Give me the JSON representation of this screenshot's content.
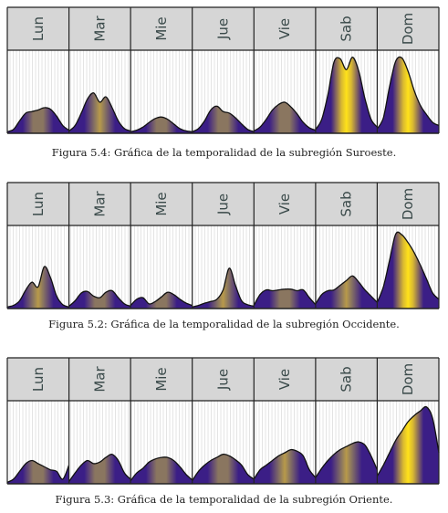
{
  "colors": {
    "header_fill": "#d6d6d6",
    "grid": "#c8c8c8",
    "frame": "#222222",
    "low": "#3b1e86",
    "mid": "#8a7660",
    "high": "#ffe21a"
  },
  "figures": [
    {
      "caption": "Figura 5.4: Gráfica de la temporalidad de la subregión Suroeste."
    },
    {
      "caption": "Figura 5.2: Gráfica de la temporalidad de la subregión Occidente."
    },
    {
      "caption": "Figura 5.3: Gráfica de la temporalidad de la subregión Oriente."
    }
  ],
  "chart_data": [
    {
      "type": "area",
      "title": "",
      "categories": [
        "Lun",
        "Mar",
        "Mie",
        "Jue",
        "Vie",
        "Sab",
        "Dom"
      ],
      "ylim": [
        0,
        1
      ],
      "grid": true,
      "values": [
        [
          0.02,
          0.05,
          0.16,
          0.26,
          0.28,
          0.3,
          0.33,
          0.31,
          0.22,
          0.1,
          0.04
        ],
        [
          0.03,
          0.1,
          0.26,
          0.44,
          0.52,
          0.4,
          0.47,
          0.33,
          0.16,
          0.06,
          0.03
        ],
        [
          0.02,
          0.04,
          0.08,
          0.14,
          0.19,
          0.21,
          0.18,
          0.12,
          0.06,
          0.03,
          0.02
        ],
        [
          0.02,
          0.06,
          0.16,
          0.3,
          0.35,
          0.28,
          0.26,
          0.2,
          0.12,
          0.05,
          0.02
        ],
        [
          0.03,
          0.08,
          0.18,
          0.3,
          0.37,
          0.4,
          0.34,
          0.25,
          0.14,
          0.07,
          0.04
        ],
        [
          0.05,
          0.18,
          0.5,
          0.92,
          0.96,
          0.82,
          0.98,
          0.8,
          0.45,
          0.18,
          0.08
        ],
        [
          0.06,
          0.2,
          0.6,
          0.93,
          0.97,
          0.8,
          0.55,
          0.36,
          0.24,
          0.14,
          0.1
        ]
      ]
    },
    {
      "type": "area",
      "title": "",
      "categories": [
        "Lun",
        "Mar",
        "Mie",
        "Jue",
        "Vie",
        "Sab",
        "Dom"
      ],
      "ylim": [
        0,
        1
      ],
      "grid": true,
      "values": [
        [
          0.02,
          0.04,
          0.1,
          0.24,
          0.34,
          0.28,
          0.54,
          0.4,
          0.16,
          0.05,
          0.02
        ],
        [
          0.03,
          0.1,
          0.2,
          0.22,
          0.16,
          0.14,
          0.21,
          0.23,
          0.14,
          0.06,
          0.03
        ],
        [
          0.04,
          0.12,
          0.14,
          0.06,
          0.09,
          0.15,
          0.21,
          0.18,
          0.12,
          0.07,
          0.04
        ],
        [
          0.02,
          0.04,
          0.07,
          0.09,
          0.12,
          0.24,
          0.52,
          0.3,
          0.1,
          0.05,
          0.03
        ],
        [
          0.04,
          0.18,
          0.24,
          0.23,
          0.24,
          0.25,
          0.25,
          0.23,
          0.24,
          0.14,
          0.05
        ],
        [
          0.06,
          0.18,
          0.23,
          0.24,
          0.3,
          0.36,
          0.42,
          0.34,
          0.24,
          0.16,
          0.08
        ],
        [
          0.08,
          0.28,
          0.62,
          0.96,
          0.95,
          0.85,
          0.72,
          0.56,
          0.38,
          0.2,
          0.12
        ]
      ]
    },
    {
      "type": "area",
      "title": "",
      "categories": [
        "Lun",
        "Mar",
        "Mie",
        "Jue",
        "Vie",
        "Sab",
        "Dom"
      ],
      "ylim": [
        0,
        1
      ],
      "grid": true,
      "values": [
        [
          0.02,
          0.06,
          0.16,
          0.26,
          0.3,
          0.26,
          0.22,
          0.18,
          0.16,
          0.06,
          0.24
        ],
        [
          0.03,
          0.14,
          0.24,
          0.3,
          0.26,
          0.28,
          0.34,
          0.38,
          0.3,
          0.14,
          0.06
        ],
        [
          0.04,
          0.14,
          0.2,
          0.28,
          0.32,
          0.34,
          0.34,
          0.3,
          0.22,
          0.12,
          0.05
        ],
        [
          0.04,
          0.16,
          0.24,
          0.3,
          0.34,
          0.38,
          0.36,
          0.31,
          0.24,
          0.12,
          0.06
        ],
        [
          0.06,
          0.18,
          0.24,
          0.3,
          0.36,
          0.4,
          0.44,
          0.42,
          0.36,
          0.18,
          0.08
        ],
        [
          0.08,
          0.2,
          0.3,
          0.38,
          0.44,
          0.48,
          0.52,
          0.54,
          0.5,
          0.36,
          0.18
        ],
        [
          0.1,
          0.24,
          0.4,
          0.56,
          0.68,
          0.8,
          0.88,
          0.94,
          0.99,
          0.84,
          0.4
        ]
      ]
    }
  ]
}
